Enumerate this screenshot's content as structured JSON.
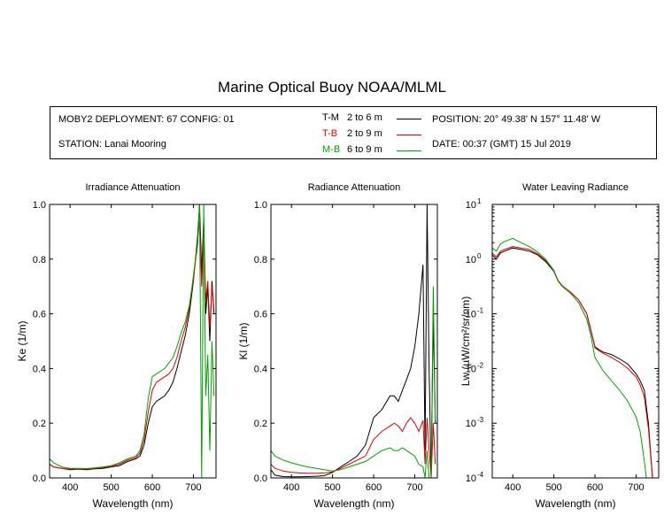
{
  "title": "Marine Optical Buoy NOAA/MLML",
  "info": {
    "deployment": "MOBY2 DEPLOYMENT: 67 CONFIG: 01",
    "station": "STATION: Lanai Mooring",
    "position": "POSITION: 20° 49.38' N   157° 11.48' W",
    "date": "DATE: 00:37 (GMT) 15 Jul 2019",
    "legend": [
      {
        "code": "T-M",
        "range": "2 to 6  m",
        "color": "#000000"
      },
      {
        "code": "T-B",
        "range": "2 to 9  m",
        "color": "#e00000"
      },
      {
        "code": "M-B",
        "range": "6 to 9  m",
        "color": "#00a000"
      }
    ]
  },
  "chart_data": [
    {
      "type": "line",
      "title": "Irradiance Attenuation",
      "xlabel": "Wavelength (nm)",
      "ylabel": "Ke  (1/m)",
      "xlim": [
        350,
        755
      ],
      "ylim": [
        0,
        1.0
      ],
      "xticks": [
        400,
        500,
        600,
        700
      ],
      "yticks": [
        "0.0",
        "0.2",
        "0.4",
        "0.6",
        "0.8",
        "1.0"
      ],
      "series": [
        {
          "name": "T-M",
          "color": "#000000",
          "x": [
            350,
            360,
            380,
            400,
            420,
            440,
            460,
            480,
            500,
            520,
            540,
            560,
            570,
            580,
            590,
            600,
            610,
            620,
            630,
            640,
            650,
            660,
            670,
            680,
            690,
            700,
            710,
            715,
            720,
            725,
            730,
            735,
            740,
            745,
            750
          ],
          "y": [
            0.05,
            0.04,
            0.035,
            0.03,
            0.032,
            0.03,
            0.033,
            0.035,
            0.04,
            0.045,
            0.06,
            0.07,
            0.08,
            0.12,
            0.2,
            0.26,
            0.28,
            0.29,
            0.3,
            0.32,
            0.35,
            0.4,
            0.46,
            0.52,
            0.6,
            0.72,
            0.88,
            1.0,
            0.75,
            0.95,
            0.6,
            0.7,
            0.5,
            0.72,
            0.6
          ]
        },
        {
          "name": "T-B",
          "color": "#e00000",
          "x": [
            350,
            360,
            380,
            400,
            420,
            440,
            460,
            480,
            500,
            520,
            540,
            560,
            570,
            580,
            590,
            600,
            610,
            620,
            630,
            640,
            650,
            660,
            670,
            680,
            690,
            700,
            710,
            715,
            720,
            725,
            730,
            735,
            740,
            745,
            750
          ],
          "y": [
            0.05,
            0.04,
            0.035,
            0.032,
            0.033,
            0.032,
            0.035,
            0.038,
            0.042,
            0.05,
            0.065,
            0.075,
            0.09,
            0.14,
            0.24,
            0.32,
            0.35,
            0.36,
            0.37,
            0.38,
            0.4,
            0.44,
            0.5,
            0.55,
            0.62,
            0.74,
            0.86,
            0.95,
            0.7,
            0.9,
            0.65,
            0.72,
            0.55,
            0.7,
            0.62
          ]
        },
        {
          "name": "M-B",
          "color": "#00a000",
          "x": [
            350,
            360,
            380,
            400,
            420,
            440,
            460,
            480,
            500,
            520,
            540,
            560,
            570,
            580,
            590,
            600,
            610,
            620,
            630,
            640,
            650,
            660,
            670,
            680,
            690,
            700,
            710,
            715,
            720,
            725,
            730,
            735,
            740,
            745,
            750
          ],
          "y": [
            0.07,
            0.055,
            0.04,
            0.035,
            0.035,
            0.034,
            0.037,
            0.04,
            0.045,
            0.055,
            0.07,
            0.08,
            0.1,
            0.16,
            0.29,
            0.37,
            0.38,
            0.39,
            0.4,
            0.42,
            0.44,
            0.48,
            0.53,
            0.57,
            0.63,
            0.73,
            0.85,
            1.0,
            0.0,
            1.0,
            0.3,
            0.45,
            0.1,
            0.5,
            0.3
          ]
        }
      ]
    },
    {
      "type": "line",
      "title": "Radiance Attenuation",
      "xlabel": "Wavelength (nm)",
      "ylabel": "Kl  (1/m)",
      "xlim": [
        350,
        755
      ],
      "ylim": [
        0,
        1.0
      ],
      "xticks": [
        400,
        500,
        600,
        700
      ],
      "yticks": [
        "0.0",
        "0.2",
        "0.4",
        "0.6",
        "0.8",
        "1.0"
      ],
      "series": [
        {
          "name": "T-M",
          "color": "#000000",
          "x": [
            350,
            360,
            380,
            400,
            420,
            440,
            460,
            480,
            500,
            520,
            540,
            560,
            580,
            590,
            600,
            620,
            640,
            650,
            660,
            670,
            680,
            690,
            700,
            710,
            720,
            725,
            730,
            735,
            740,
            745,
            750
          ],
          "y": [
            0.03,
            0.01,
            0.005,
            0.004,
            0.004,
            0.005,
            0.006,
            0.008,
            0.02,
            0.04,
            0.06,
            0.08,
            0.12,
            0.17,
            0.22,
            0.25,
            0.3,
            0.3,
            0.28,
            0.32,
            0.36,
            0.4,
            0.48,
            0.6,
            0.78,
            0.1,
            1.0,
            0.4,
            0.0,
            0.6,
            0.2
          ]
        },
        {
          "name": "T-B",
          "color": "#e00000",
          "x": [
            350,
            360,
            380,
            400,
            420,
            440,
            460,
            480,
            500,
            520,
            540,
            560,
            580,
            590,
            600,
            620,
            640,
            650,
            660,
            670,
            680,
            690,
            700,
            710,
            720,
            725,
            730,
            735,
            740,
            745,
            750
          ],
          "y": [
            0.05,
            0.035,
            0.025,
            0.02,
            0.018,
            0.017,
            0.017,
            0.018,
            0.022,
            0.035,
            0.05,
            0.065,
            0.08,
            0.11,
            0.14,
            0.17,
            0.19,
            0.2,
            0.19,
            0.17,
            0.2,
            0.22,
            0.2,
            0.17,
            0.21,
            0.05,
            0.22,
            0.1,
            0.0,
            0.2,
            0.05
          ]
        },
        {
          "name": "M-B",
          "color": "#00a000",
          "x": [
            350,
            360,
            380,
            400,
            420,
            440,
            460,
            480,
            500,
            520,
            540,
            560,
            580,
            590,
            600,
            620,
            640,
            650,
            660,
            670,
            680,
            690,
            700,
            710,
            720,
            725,
            730,
            735,
            740,
            745,
            750
          ],
          "y": [
            0.1,
            0.08,
            0.065,
            0.055,
            0.047,
            0.04,
            0.035,
            0.03,
            0.025,
            0.03,
            0.04,
            0.05,
            0.06,
            0.07,
            0.08,
            0.1,
            0.11,
            0.1,
            0.1,
            0.11,
            0.1,
            0.09,
            0.08,
            0.05,
            0.04,
            0.0,
            0.1,
            0.0,
            0.0,
            0.7,
            0.2
          ]
        }
      ]
    },
    {
      "type": "line",
      "title": "Water Leaving Radiance",
      "xlabel": "Wavelength (nm)",
      "ylabel": "Lw  (µW/cm²/sr/nm)",
      "log_y": true,
      "xlim": [
        350,
        755
      ],
      "ylim": [
        0.0001,
        10
      ],
      "xticks": [
        400,
        500,
        600,
        700
      ],
      "yticks_exp": [
        -4,
        -3,
        -2,
        -1,
        0,
        1
      ],
      "series": [
        {
          "name": "T-M",
          "color": "#000000",
          "x": [
            350,
            360,
            370,
            380,
            400,
            420,
            440,
            460,
            480,
            500,
            510,
            520,
            540,
            560,
            580,
            590,
            600,
            610,
            620,
            640,
            660,
            680,
            700,
            710,
            720,
            730,
            740
          ],
          "y": [
            1.2,
            1.0,
            1.3,
            1.4,
            1.6,
            1.5,
            1.4,
            1.2,
            0.9,
            0.6,
            0.4,
            0.32,
            0.25,
            0.18,
            0.1,
            0.05,
            0.025,
            0.022,
            0.02,
            0.018,
            0.015,
            0.012,
            0.008,
            0.006,
            0.004,
            0.001,
            0.0001
          ]
        },
        {
          "name": "T-B",
          "color": "#e00000",
          "x": [
            350,
            360,
            370,
            380,
            400,
            420,
            440,
            460,
            480,
            500,
            510,
            520,
            540,
            560,
            580,
            590,
            600,
            610,
            620,
            640,
            660,
            680,
            700,
            710,
            720,
            730,
            740
          ],
          "y": [
            1.3,
            1.1,
            1.4,
            1.5,
            1.7,
            1.6,
            1.5,
            1.25,
            0.95,
            0.62,
            0.41,
            0.33,
            0.25,
            0.18,
            0.1,
            0.05,
            0.024,
            0.021,
            0.019,
            0.016,
            0.013,
            0.01,
            0.007,
            0.005,
            0.003,
            0.0008,
            0.0001
          ]
        },
        {
          "name": "M-B",
          "color": "#00a000",
          "x": [
            350,
            360,
            370,
            380,
            400,
            420,
            440,
            460,
            480,
            500,
            510,
            520,
            540,
            560,
            580,
            590,
            600,
            610,
            620,
            640,
            660,
            680,
            700,
            710,
            720,
            725
          ],
          "y": [
            1.6,
            1.4,
            1.9,
            2.1,
            2.4,
            2.0,
            1.7,
            1.35,
            1.0,
            0.62,
            0.4,
            0.32,
            0.24,
            0.16,
            0.08,
            0.04,
            0.016,
            0.012,
            0.009,
            0.006,
            0.004,
            0.0025,
            0.0013,
            0.0007,
            0.0002,
            0.0001
          ]
        }
      ]
    }
  ]
}
